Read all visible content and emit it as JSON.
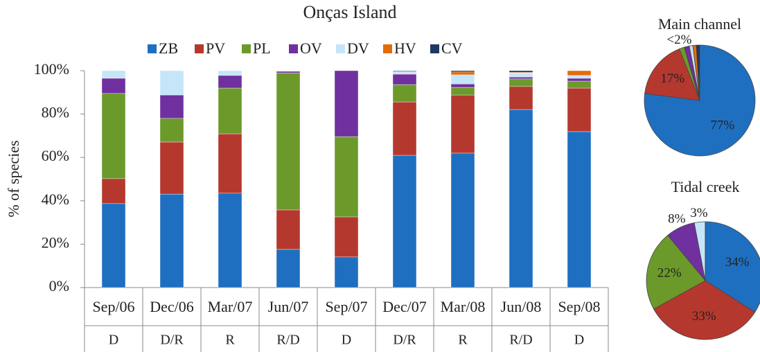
{
  "chart_data": [
    {
      "type": "bar",
      "stacked": true,
      "title": "Onças Island",
      "ylabel": "% of species",
      "grid": false,
      "legend": "top",
      "categories": [
        "Sep/06",
        "Dec/06",
        "Mar/07",
        "Jun/07",
        "Sep/07",
        "Dec/07",
        "Mar/08",
        "Jun/08",
        "Sep/08"
      ],
      "category_sublabels": [
        "D",
        "D/R",
        "R",
        "R/D",
        "D",
        "D/R",
        "R",
        "R/D",
        "D"
      ],
      "ylim": [
        0,
        100
      ],
      "yticks": [
        {
          "value": 0,
          "label": "0%"
        },
        {
          "value": 20,
          "label": "20%"
        },
        {
          "value": 40,
          "label": "40%"
        },
        {
          "value": 60,
          "label": "60%"
        },
        {
          "value": 80,
          "label": "80%"
        },
        {
          "value": 100,
          "label": "100%"
        }
      ],
      "series": [
        {
          "name": "ZB",
          "color": "#1f6fc0",
          "values": [
            38.7,
            43.1,
            43.5,
            17.6,
            14.1,
            61,
            62,
            82.1,
            71.9
          ]
        },
        {
          "name": "PV",
          "color": "#b5382f",
          "values": [
            11.5,
            24,
            27.4,
            18.2,
            18.5,
            24.6,
            26.8,
            10.6,
            20.1
          ]
        },
        {
          "name": "PL",
          "color": "#6b9a2b",
          "values": [
            39.3,
            10.9,
            21.1,
            63.2,
            37,
            8,
            3.5,
            3.5,
            3.2
          ]
        },
        {
          "name": "OV",
          "color": "#7030a0",
          "values": [
            7,
            10.8,
            5.8,
            0.7,
            30.4,
            4.8,
            1.6,
            0.9,
            1.3
          ]
        },
        {
          "name": "DV",
          "color": "#c4e6f8",
          "values": [
            3.5,
            11.2,
            2.2,
            0.3,
            0,
            1,
            4.2,
            1.9,
            1.3
          ]
        },
        {
          "name": "HV",
          "color": "#e36c0a",
          "values": [
            0,
            0,
            0,
            0,
            0,
            0.3,
            1.3,
            0.3,
            2.2
          ]
        },
        {
          "name": "CV",
          "color": "#1f3864",
          "values": [
            0,
            0,
            0,
            0,
            0,
            0.3,
            0.6,
            0.7,
            0
          ]
        }
      ]
    },
    {
      "type": "pie",
      "title": "Main channel",
      "categories": [
        "ZB",
        "PV",
        "PL",
        "OV",
        "DV",
        "HV",
        "CV"
      ],
      "values": [
        77,
        17,
        1.5,
        1.5,
        1,
        1,
        1
      ],
      "value_labels": [
        "77%",
        "17%",
        "<2%",
        null,
        null,
        null,
        null
      ],
      "colors": [
        "#1f6fc0",
        "#b5382f",
        "#6b9a2b",
        "#7030a0",
        "#c4e6f8",
        "#e36c0a",
        "#1f3864"
      ]
    },
    {
      "type": "pie",
      "title": "Tidal creek",
      "categories": [
        "ZB",
        "PV",
        "PL",
        "OV",
        "DV",
        "HV",
        "CV"
      ],
      "values": [
        34,
        33,
        22,
        8,
        3,
        0,
        0
      ],
      "value_labels": [
        "34%",
        "33%",
        "22%",
        "8%",
        "3%",
        null,
        null
      ],
      "colors": [
        "#1f6fc0",
        "#b5382f",
        "#6b9a2b",
        "#7030a0",
        "#c4e6f8",
        "#e36c0a",
        "#1f3864"
      ]
    }
  ]
}
